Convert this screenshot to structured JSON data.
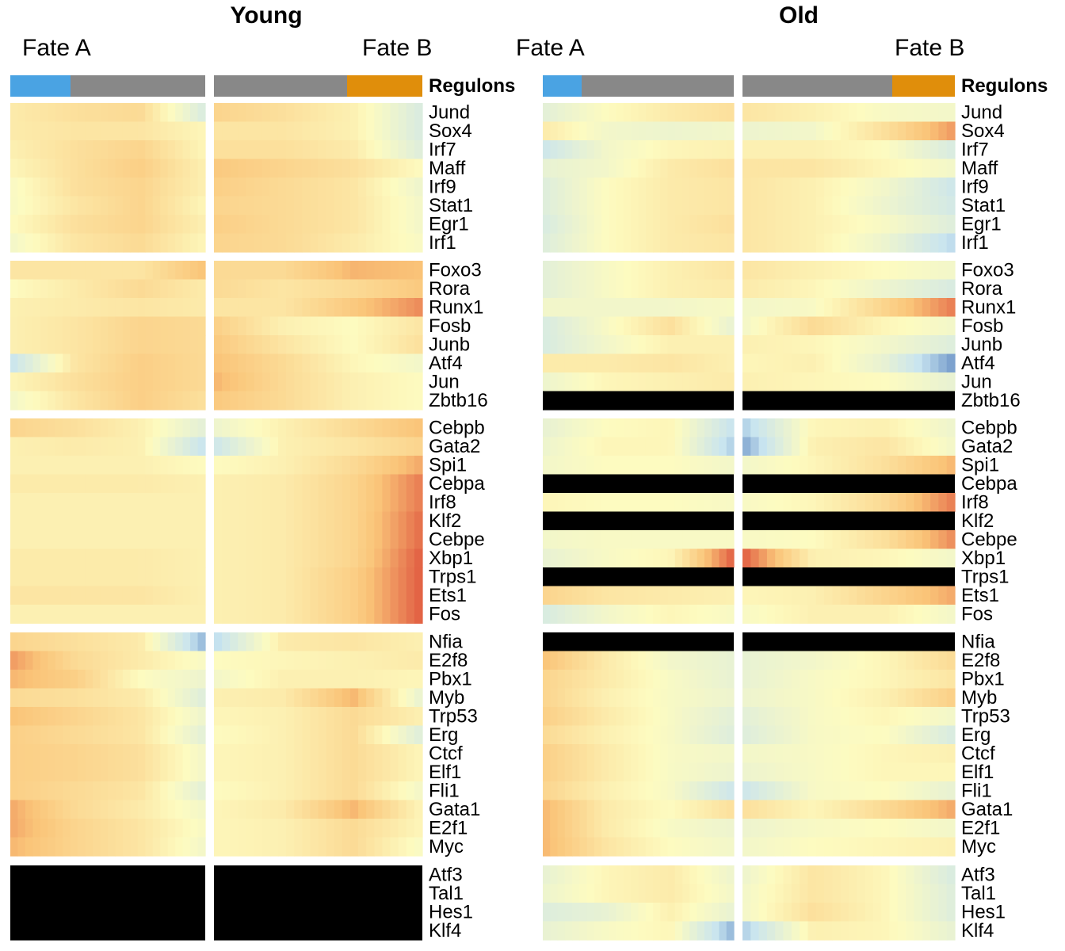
{
  "chart_data": {
    "type": "heatmap",
    "panels": [
      {
        "title": "Young",
        "fate_labels": [
          "Fate A",
          "Fate B"
        ],
        "annotation_label": "Regulons"
      },
      {
        "title": "Old",
        "fate_labels": [
          "Fate A",
          "Fate B"
        ],
        "annotation_label": "Regulons"
      }
    ],
    "annotation_colors": {
      "fate_a": "#4aa3e3",
      "intermediate": "#888888",
      "fate_b": "#e08e0b"
    },
    "color_scale": {
      "low": "#3a68b0",
      "mid": "#fdfbc0",
      "high": "#d6302a",
      "missing": "#000000"
    },
    "groups": [
      [
        "Jund",
        "Sox4",
        "Irf7",
        "Maff",
        "Irf9",
        "Stat1",
        "Egr1",
        "Irf1"
      ],
      [
        "Foxo3",
        "Rora",
        "Runx1",
        "Fosb",
        "Junb",
        "Atf4",
        "Jun",
        "Zbtb16"
      ],
      [
        "Cebpb",
        "Gata2",
        "Spi1",
        "Cebpa",
        "Irf8",
        "Klf2",
        "Cebpe",
        "Xbp1",
        "Trps1",
        "Ets1",
        "Fos"
      ],
      [
        "Nfia",
        "E2f8",
        "Pbx1",
        "Myb",
        "Trp53",
        "Erg",
        "Ctcf",
        "Elf1",
        "Fli1",
        "Gata1",
        "E2f1",
        "Myc"
      ],
      [
        "Atf3",
        "Tal1",
        "Hes1",
        "Klf4"
      ]
    ],
    "missing_rows": {
      "Young": [
        "Atf3",
        "Tal1",
        "Hes1",
        "Klf4"
      ],
      "Old": [
        "Zbtb16",
        "Cebpa",
        "Klf2",
        "Trps1",
        "Nfia"
      ]
    },
    "profiles": {
      "Young": {
        "Jund": [
          0.15,
          0.25,
          0.3,
          -0.35,
          0.35,
          0.25,
          0.1,
          -0.35
        ],
        "Sox4": [
          0.15,
          0.2,
          0.2,
          0.05,
          0.2,
          0.2,
          0.1,
          -0.35
        ],
        "Irf7": [
          0.1,
          0.25,
          0.35,
          0.05,
          0.25,
          0.25,
          0.15,
          -0.3
        ],
        "Maff": [
          0.05,
          0.25,
          0.4,
          0.1,
          0.45,
          0.35,
          0.25,
          0
        ],
        "Irf9": [
          -0.05,
          0.25,
          0.35,
          0.1,
          0.4,
          0.3,
          0.2,
          -0.15
        ],
        "Stat1": [
          -0.05,
          0.2,
          0.35,
          0.05,
          0.35,
          0.3,
          0.2,
          -0.1
        ],
        "Egr1": [
          0,
          0.25,
          0.35,
          0.1,
          0.4,
          0.3,
          0.2,
          -0.1
        ],
        "Irf1": [
          -0.1,
          0.2,
          0.3,
          0.05,
          0.35,
          0.3,
          0.15,
          -0.05
        ],
        "Foxo3": [
          0.2,
          0.2,
          0.2,
          0.5,
          0.3,
          0.3,
          0.55,
          0.5
        ],
        "Rora": [
          0,
          0.15,
          0.3,
          0.15,
          0.3,
          0.2,
          0.3,
          0.45
        ],
        "Runx1": [
          0.1,
          0.15,
          0.2,
          0.15,
          0.2,
          0.2,
          0.45,
          0.7
        ],
        "Fosb": [
          0.1,
          0.2,
          0.35,
          0.3,
          0.4,
          0.1,
          0,
          0.2
        ],
        "Junb": [
          0.1,
          0.2,
          0.35,
          0.3,
          0.45,
          0.2,
          0,
          0.25
        ],
        "Atf4": [
          -0.5,
          0.2,
          0.4,
          0.3,
          0.5,
          0.3,
          0.05,
          -0.1
        ],
        "Jun": [
          0.05,
          0.25,
          0.4,
          0.3,
          0.55,
          0.3,
          0.1,
          0
        ],
        "Zbtb16": [
          -0.1,
          0.2,
          0.4,
          0.25,
          0.45,
          0.3,
          0.1,
          0
        ],
        "Cebpb": [
          0.35,
          0.25,
          0.1,
          -0.25,
          -0.15,
          0.1,
          0.3,
          0.5
        ],
        "Gata2": [
          0.1,
          0.15,
          0.1,
          -0.5,
          -0.45,
          0.1,
          0.2,
          0.35
        ],
        "Spi1": [
          0.1,
          0.1,
          0.1,
          0,
          0,
          0.1,
          0.3,
          0.6
        ],
        "Cebpa": [
          0.15,
          0.15,
          0.15,
          0.1,
          0.1,
          0.15,
          0.35,
          0.75
        ],
        "Irf8": [
          0.1,
          0.1,
          0.1,
          0.1,
          0.1,
          0.15,
          0.35,
          0.75
        ],
        "Klf2": [
          0.1,
          0.1,
          0.1,
          0.1,
          0.1,
          0.15,
          0.35,
          0.8
        ],
        "Cebpe": [
          0.1,
          0.1,
          0.1,
          0.1,
          0.1,
          0.15,
          0.35,
          0.8
        ],
        "Xbp1": [
          0.15,
          0.15,
          0.15,
          0.1,
          0.1,
          0.15,
          0.35,
          0.85
        ],
        "Trps1": [
          0.15,
          0.15,
          0.15,
          0.1,
          0.1,
          0.15,
          0.4,
          0.85
        ],
        "Ets1": [
          0.2,
          0.2,
          0.2,
          0.1,
          0.1,
          0.15,
          0.4,
          0.85
        ],
        "Fos": [
          0.1,
          0.1,
          0.1,
          0.1,
          0.1,
          0.15,
          0.4,
          0.85
        ],
        "Nfia": [
          0.35,
          0.25,
          0.15,
          -0.7,
          -0.55,
          0.15,
          0.2,
          0.1
        ],
        "E2f8": [
          0.65,
          0.3,
          0.15,
          -0.05,
          0,
          0.05,
          0.1,
          0.15
        ],
        "Pbx1": [
          0.55,
          0.4,
          0,
          -0.15,
          -0.1,
          0.1,
          0.1,
          0.05
        ],
        "Myb": [
          0.3,
          0.25,
          0.15,
          -0.3,
          0.1,
          0.15,
          0.55,
          -0.2
        ],
        "Trp53": [
          0.5,
          0.35,
          0.2,
          -0.15,
          0.05,
          0.1,
          0.3,
          0.1
        ],
        "Erg": [
          0.4,
          0.3,
          0.2,
          -0.25,
          0,
          0.1,
          0.3,
          -0.3
        ],
        "Ctcf": [
          0.4,
          0.35,
          0.25,
          -0.1,
          0.05,
          0.1,
          0.3,
          0.05
        ],
        "Elf1": [
          0.4,
          0.35,
          0.25,
          -0.1,
          0.05,
          0.1,
          0.3,
          0.05
        ],
        "Fli1": [
          0.4,
          0.3,
          0.2,
          -0.25,
          0,
          0.1,
          0.3,
          -0.1
        ],
        "Gata1": [
          0.6,
          0.3,
          0.15,
          -0.1,
          0.05,
          0.15,
          0.55,
          0.05
        ],
        "E2f1": [
          0.6,
          0.35,
          0.2,
          -0.05,
          0.05,
          0.1,
          0.3,
          0.05
        ],
        "Myc": [
          0.55,
          0.35,
          0.2,
          -0.1,
          0.05,
          0.1,
          0.3,
          -0.05
        ],
        "Atf3": [
          0,
          0,
          0,
          0,
          0,
          0,
          0,
          0
        ],
        "Tal1": [
          0,
          0,
          0,
          0,
          0,
          0,
          0,
          0
        ],
        "Hes1": [
          0,
          0,
          0,
          0,
          0,
          0,
          0,
          0
        ],
        "Klf4": [
          0,
          0,
          0,
          0,
          0,
          0,
          0,
          0
        ]
      },
      "Old": {
        "Jund": [
          -0.25,
          0,
          0.15,
          0.25,
          0.2,
          0.1,
          -0.05,
          -0.1
        ],
        "Sox4": [
          0.15,
          -0.1,
          -0.15,
          -0.1,
          -0.15,
          -0.1,
          0.25,
          0.65
        ],
        "Irf7": [
          -0.45,
          -0.1,
          0.05,
          0.1,
          0.1,
          0.1,
          0,
          -0.35
        ],
        "Maff": [
          -0.2,
          -0.1,
          0.15,
          0.25,
          0.2,
          0.2,
          0.05,
          -0.1
        ],
        "Irf9": [
          -0.3,
          0,
          0.15,
          0.2,
          0.2,
          0.1,
          -0.1,
          -0.45
        ],
        "Stat1": [
          -0.3,
          0,
          0.15,
          0.2,
          0.2,
          0.1,
          -0.15,
          -0.4
        ],
        "Egr1": [
          -0.35,
          0,
          0.15,
          0.25,
          0.2,
          0.1,
          -0.05,
          -0.3
        ],
        "Irf1": [
          -0.3,
          0,
          0.15,
          0.2,
          0.2,
          0.1,
          -0.15,
          -0.55
        ],
        "Foxo3": [
          -0.25,
          -0.05,
          0.1,
          0.2,
          0.2,
          0.1,
          0,
          -0.1
        ],
        "Rora": [
          -0.25,
          -0.05,
          0.1,
          0.15,
          0.15,
          0.05,
          -0.15,
          -0.35
        ],
        "Runx1": [
          -0.1,
          -0.1,
          -0.1,
          -0.05,
          -0.1,
          -0.05,
          0.35,
          0.75
        ],
        "Fosb": [
          -0.35,
          -0.05,
          0.25,
          -0.2,
          -0.1,
          0.3,
          0.05,
          -0.1
        ],
        "Junb": [
          -0.35,
          -0.1,
          0.1,
          0.1,
          0.1,
          0.05,
          -0.1,
          -0.3
        ],
        "Atf4": [
          0.15,
          0.15,
          0.2,
          0.1,
          0.05,
          0.1,
          -0.2,
          -0.8
        ],
        "Jun": [
          -0.15,
          0.05,
          0.1,
          0.15,
          0.1,
          0.05,
          0,
          -0.2
        ],
        "Zbtb16": [
          0,
          0,
          0,
          0,
          0,
          0,
          0,
          0
        ],
        "Cebpb": [
          -0.2,
          0,
          0.05,
          -0.5,
          -0.6,
          0.05,
          0.1,
          -0.15
        ],
        "Gata2": [
          -0.15,
          0.05,
          0.05,
          -0.6,
          -0.75,
          0.1,
          0.2,
          -0.1
        ],
        "Spi1": [
          -0.1,
          0,
          0,
          -0.1,
          -0.1,
          0.05,
          0.25,
          0.55
        ],
        "Cebpa": [
          0,
          0,
          0,
          0,
          0,
          0,
          0,
          0
        ],
        "Irf8": [
          0.05,
          0,
          0,
          -0.05,
          -0.05,
          0.05,
          0.3,
          0.75
        ],
        "Klf2": [
          0,
          0,
          0,
          0,
          0,
          0,
          0,
          0
        ],
        "Cebpe": [
          -0.1,
          -0.05,
          -0.05,
          -0.05,
          -0.05,
          0,
          0.25,
          0.7
        ],
        "Xbp1": [
          -0.2,
          -0.05,
          0.05,
          0.85,
          0.85,
          0.1,
          0.05,
          -0.1
        ],
        "Trps1": [
          0,
          0,
          0,
          0,
          0,
          0,
          0,
          0
        ],
        "Ets1": [
          0.35,
          0.2,
          0.15,
          0.1,
          0.05,
          0.1,
          0.35,
          0.6
        ],
        "Fos": [
          -0.35,
          -0.1,
          0.05,
          -0.05,
          -0.05,
          0.1,
          0.1,
          -0.1
        ],
        "Nfia": [
          0,
          0,
          0,
          0,
          0,
          0,
          0,
          0
        ],
        "E2f8": [
          0.5,
          0.15,
          -0.1,
          -0.2,
          -0.2,
          -0.1,
          0.05,
          0.3
        ],
        "Pbx1": [
          0.35,
          0.15,
          -0.05,
          -0.2,
          -0.2,
          -0.05,
          0.05,
          0.2
        ],
        "Myb": [
          0.35,
          0.1,
          -0.05,
          -0.15,
          -0.15,
          -0.05,
          0.1,
          0.4
        ],
        "Trp53": [
          0.4,
          0.15,
          -0.05,
          -0.25,
          -0.25,
          -0.05,
          0.05,
          -0.1
        ],
        "Erg": [
          0.3,
          0.1,
          -0.05,
          -0.3,
          -0.3,
          -0.05,
          0,
          -0.35
        ],
        "Ctcf": [
          0.4,
          0.15,
          -0.05,
          -0.1,
          -0.1,
          -0.05,
          0.05,
          0.1
        ],
        "Elf1": [
          0.4,
          0.15,
          -0.05,
          -0.15,
          -0.15,
          -0.05,
          0.05,
          0.05
        ],
        "Fli1": [
          0.35,
          0.1,
          -0.05,
          -0.45,
          -0.45,
          -0.05,
          0,
          -0.2
        ],
        "Gata1": [
          0.55,
          0.15,
          0,
          0.25,
          0.25,
          0.05,
          0.3,
          0.6
        ],
        "E2f1": [
          0.55,
          0.15,
          -0.05,
          -0.15,
          -0.15,
          -0.05,
          0,
          -0.1
        ],
        "Myc": [
          0.55,
          0.2,
          0,
          -0.1,
          -0.1,
          0,
          0.05,
          0.1
        ],
        "Atf3": [
          -0.2,
          0.05,
          0.15,
          -0.15,
          -0.15,
          0.2,
          0.05,
          -0.35
        ],
        "Tal1": [
          -0.15,
          0.05,
          0.15,
          -0.1,
          -0.1,
          0.2,
          0.05,
          -0.3
        ],
        "Hes1": [
          -0.3,
          -0.2,
          0.1,
          -0.2,
          -0.1,
          0.25,
          0.05,
          -0.3
        ],
        "Klf4": [
          -0.2,
          -0.05,
          0.05,
          -0.7,
          -0.6,
          0.1,
          0.05,
          -0.2
        ]
      }
    }
  }
}
